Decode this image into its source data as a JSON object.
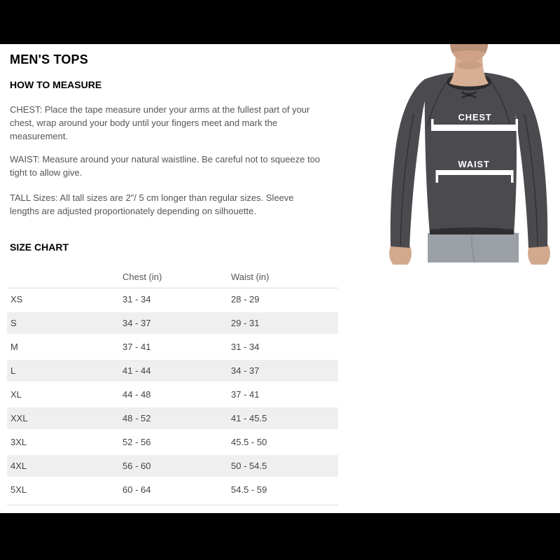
{
  "page": {
    "title": "MEN'S TOPS"
  },
  "measure": {
    "heading": "HOW TO MEASURE",
    "sections": [
      {
        "name": "chest",
        "lines": [
          "CHEST: Place the tape measure under your arms at the fullest part of your",
          "chest, wrap around your body until your fingers meet and mark the",
          "measurement."
        ]
      },
      {
        "name": "waist",
        "lines": [
          "WAIST: Measure around your natural waistline. Be careful not to squeeze too",
          "tight to allow give."
        ]
      },
      {
        "name": "tall",
        "lines": [
          "TALL Sizes: All tall sizes are 2\"/ 5 cm longer than regular sizes. Sleeve",
          "lengths are adjusted proportionately depending on silhouette."
        ]
      }
    ]
  },
  "size_chart": {
    "heading": "SIZE CHART",
    "columns": {
      "size": "",
      "chest": "Chest (in)",
      "waist": "Waist (in)"
    },
    "rows": [
      {
        "size": "XS",
        "chest": "31 - 34",
        "waist": "28 - 29"
      },
      {
        "size": "S",
        "chest": "34 - 37",
        "waist": "29 - 31"
      },
      {
        "size": "M",
        "chest": "37 - 41",
        "waist": "31 - 34"
      },
      {
        "size": "L",
        "chest": "41 - 44",
        "waist": "34 - 37"
      },
      {
        "size": "XL",
        "chest": "44 - 48",
        "waist": "37 - 41"
      },
      {
        "size": "XXL",
        "chest": "48 - 52",
        "waist": "41 - 45.5"
      },
      {
        "size": "3XL",
        "chest": "52 - 56",
        "waist": "45.5 - 50"
      },
      {
        "size": "4XL",
        "chest": "56 - 60",
        "waist": "50 - 54.5"
      },
      {
        "size": "5XL",
        "chest": "60 - 64",
        "waist": "54.5 - 59"
      }
    ]
  },
  "figure": {
    "chest_label": "CHEST",
    "waist_label": "WAIST"
  },
  "colors": {
    "letterbox": "#000000",
    "row_alt": "#efefef",
    "table_border": "#dddddd",
    "body_text": "#555555",
    "table_text": "#444444",
    "shirt": "#4b4b4f",
    "shirt_hem": "#2f2f31",
    "collar": "#2c2c2e",
    "shorts": "#9aa0a5",
    "skin": "#d7af94",
    "measure_bar": "#ffffff"
  }
}
